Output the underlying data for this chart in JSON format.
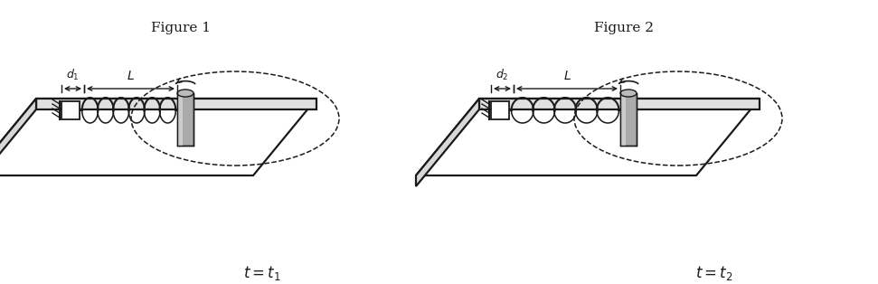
{
  "fig_width": 9.71,
  "fig_height": 3.14,
  "dpi": 100,
  "bg_color": "#ffffff",
  "line_color": "#1a1a1a",
  "title1": "$t = t_1$",
  "title2": "$t = t_2$",
  "caption1": "Figure 1",
  "caption2": "Figure 2"
}
